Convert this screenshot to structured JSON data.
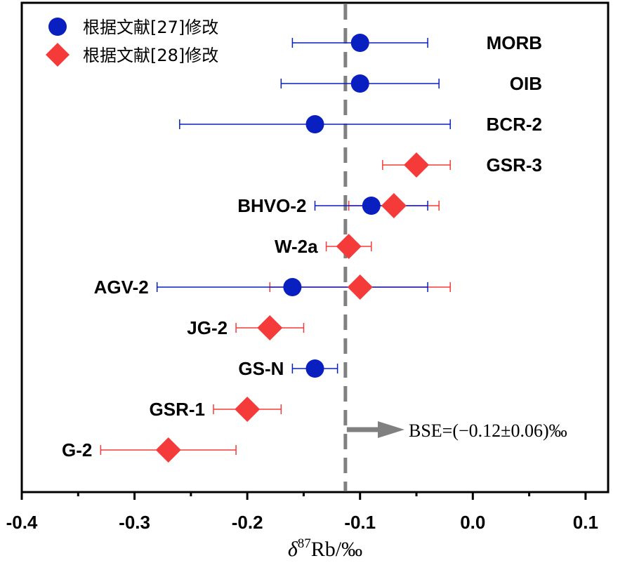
{
  "chart_data": {
    "type": "scatter",
    "title": "",
    "xlabel": "δ⁸⁷Rb/‰",
    "xlabel_parts": {
      "delta": "δ",
      "mass": "87",
      "rest": "Rb/‰"
    },
    "xlim": [
      -0.4,
      0.12
    ],
    "xticks": [
      {
        "value": -0.4,
        "label": "-0.4"
      },
      {
        "value": -0.3,
        "label": "-0.3"
      },
      {
        "value": -0.2,
        "label": "-0.2"
      },
      {
        "value": -0.1,
        "label": "-0.1"
      },
      {
        "value": 0.0,
        "label": "0.0"
      },
      {
        "value": 0.1,
        "label": "0.1"
      }
    ],
    "grid": false,
    "legend_position": "top-left",
    "categories": [
      "MORB",
      "OIB",
      "BCR-2",
      "GSR-3",
      "BHVO-2",
      "W-2a",
      "AGV-2",
      "JG-2",
      "GS-N",
      "GSR-1",
      "G-2"
    ],
    "series": [
      {
        "name": "根据文献[27]修改",
        "marker": "circle",
        "color": "#0a1fbf",
        "points": [
          {
            "label": "MORB",
            "x": -0.1,
            "xmin": -0.16,
            "xmax": -0.04
          },
          {
            "label": "OIB",
            "x": -0.1,
            "xmin": -0.17,
            "xmax": -0.03
          },
          {
            "label": "BCR-2",
            "x": -0.14,
            "xmin": -0.26,
            "xmax": -0.02
          },
          {
            "label": "BHVO-2",
            "x": -0.09,
            "xmin": -0.14,
            "xmax": -0.04
          },
          {
            "label": "AGV-2",
            "x": -0.16,
            "xmin": -0.28,
            "xmax": -0.04
          },
          {
            "label": "GS-N",
            "x": -0.14,
            "xmin": -0.16,
            "xmax": -0.12
          }
        ]
      },
      {
        "name": "根据文献[28]修改",
        "marker": "diamond",
        "color": "#f53a3a",
        "points": [
          {
            "label": "GSR-3",
            "x": -0.05,
            "xmin": -0.08,
            "xmax": -0.02
          },
          {
            "label": "BHVO-2",
            "x": -0.07,
            "xmin": -0.11,
            "xmax": -0.03
          },
          {
            "label": "W-2a",
            "x": -0.11,
            "xmin": -0.13,
            "xmax": -0.09
          },
          {
            "label": "AGV-2",
            "x": -0.1,
            "xmin": -0.18,
            "xmax": -0.02
          },
          {
            "label": "JG-2",
            "x": -0.18,
            "xmin": -0.21,
            "xmax": -0.15
          },
          {
            "label": "GSR-1",
            "x": -0.2,
            "xmin": -0.23,
            "xmax": -0.17
          },
          {
            "label": "G-2",
            "x": -0.27,
            "xmin": -0.33,
            "xmax": -0.21
          }
        ]
      }
    ],
    "reference_line": {
      "x": -0.113,
      "color": "#808080",
      "style": "dashed"
    },
    "annotation": {
      "text": "BSE=(−0.12±0.06)‰",
      "arrow_color": "#808080"
    }
  }
}
